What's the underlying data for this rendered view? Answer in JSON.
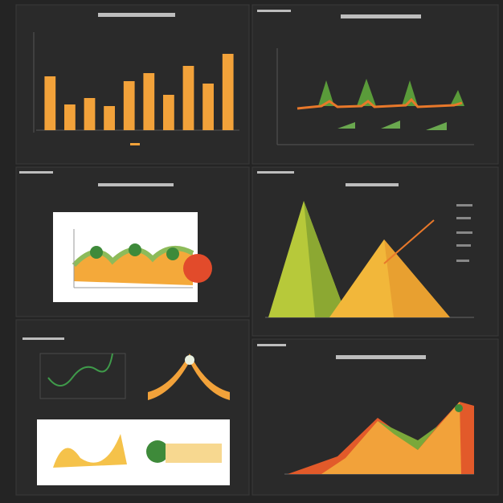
{
  "chart_data": {
    "type": "bar",
    "values": [
      67,
      32,
      40,
      30,
      61,
      71,
      44,
      80,
      58,
      95
    ],
    "color": "#f2a23a",
    "ylim": [
      0,
      100
    ]
  }
}
